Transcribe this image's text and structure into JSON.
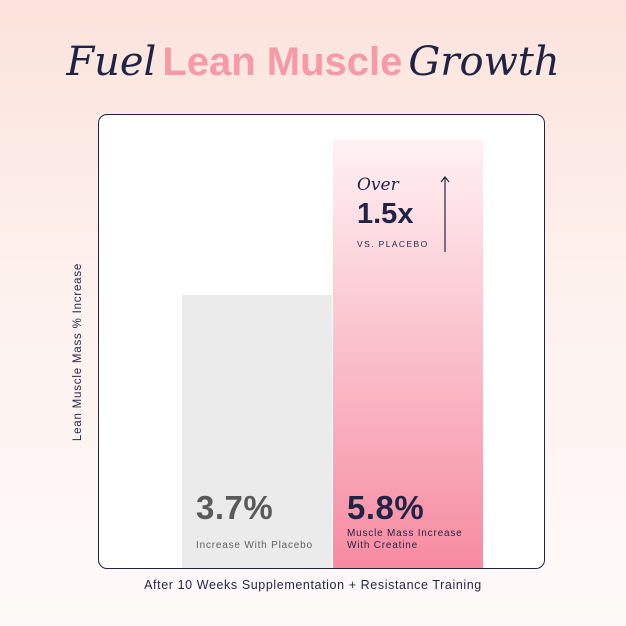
{
  "title": {
    "part1": "Fuel",
    "accent": "Lean Muscle",
    "part2": "Growth"
  },
  "chart_data": {
    "type": "bar",
    "categories": [
      "Increase With Placebo",
      "Muscle Mass Increase With Creatine"
    ],
    "values": [
      3.7,
      5.8
    ],
    "value_labels": [
      "3.7%",
      "5.8%"
    ],
    "title": "Fuel Lean Muscle Growth",
    "xlabel": "After 10 Weeks Supplementation + Resistance Training",
    "ylabel": "Lean Muscle Mass % Increase",
    "grid": false,
    "annotation": {
      "over": "Over",
      "multiplier": "1.5x",
      "comparison": "VS. PLACEBO"
    },
    "colors": {
      "placebo": "#ebebeb",
      "creatine": "#f78ba1",
      "text": "#1f2446",
      "accent": "#f59aa6"
    }
  }
}
